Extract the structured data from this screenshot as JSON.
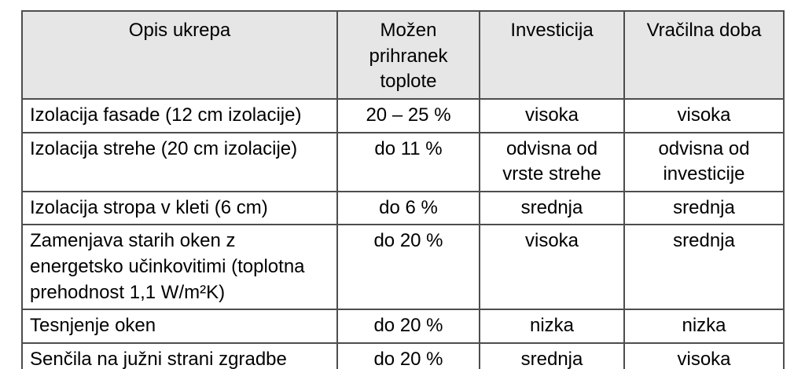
{
  "table": {
    "columns": [
      {
        "label": "Opis ukrepa"
      },
      {
        "label": "Možen prihranek toplote"
      },
      {
        "label": "Investicija"
      },
      {
        "label": "Vračilna doba"
      }
    ],
    "rows": [
      [
        "Izolacija fasade (12 cm izolacije)",
        "20 – 25 %",
        "visoka",
        "visoka"
      ],
      [
        "Izolacija strehe (20 cm izolacije)",
        "do 11 %",
        "odvisna od vrste strehe",
        "odvisna od investicije"
      ],
      [
        "Izolacija stropa v kleti (6 cm)",
        "do 6 %",
        "srednja",
        "srednja"
      ],
      [
        "Zamenjava starih oken z energetsko učinkovitimi (toplotna prehodnost 1,1 W/m²K)",
        "do 20 %",
        "visoka",
        "srednja"
      ],
      [
        "Tesnjenje oken",
        "do 20 %",
        "nizka",
        "nizka"
      ],
      [
        "Senčila na južni strani zgradbe",
        "do 20 %",
        "srednja",
        "visoka"
      ]
    ],
    "colors": {
      "header_background": "#e6e6e6",
      "border": "#4d4d4d",
      "text": "#000000",
      "page_background": "#ffffff"
    }
  }
}
